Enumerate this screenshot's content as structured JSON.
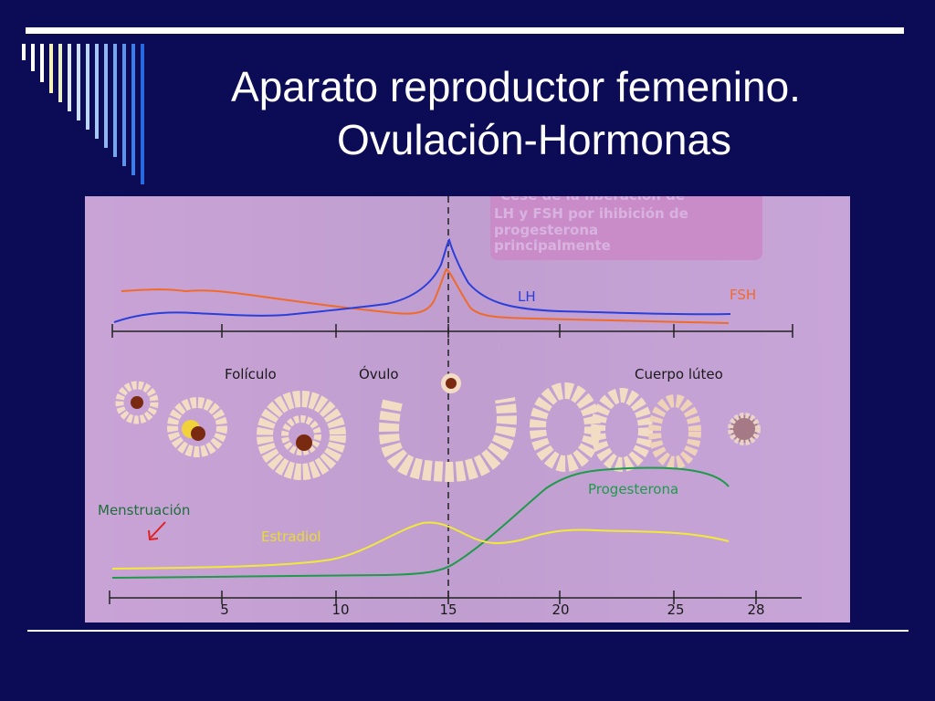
{
  "slide": {
    "title_line1": "Aparato reproductor femenino.",
    "title_line2": "Ovulación-Hormonas"
  },
  "figure": {
    "note": [
      "Cese de la liberación de",
      "LH y FSH por ihibición de",
      "progesterona",
      "principalmente"
    ],
    "gonadotropins": {
      "lh_label": "LH",
      "fsh_label": "FSH",
      "lh_color": "#2a3fd9",
      "fsh_color": "#f06a2a"
    },
    "structures": {
      "foliculo_label": "Folículo",
      "ovulo_label": "Óvulo",
      "cuerpo_luteo_label": "Cuerpo lúteo"
    },
    "ovarian_hormones": {
      "menstruacion_label": "Menstruación",
      "estradiol_label": "Estradiol",
      "progesterona_label": "Progesterona",
      "estradiol_color": "#f2e83a",
      "progesterona_color": "#1f9a4a",
      "menstruacion_color": "#1f6e3a"
    },
    "day_axis": {
      "ticks": [
        "5",
        "10",
        "15",
        "20",
        "25",
        "28"
      ]
    },
    "colors": {
      "background": "#0c0b56",
      "panel": "#c7a4d6",
      "note_box": "#c98cc9",
      "cell_fill": "#f3dcc4",
      "nucleus": "#7a2a10"
    }
  }
}
